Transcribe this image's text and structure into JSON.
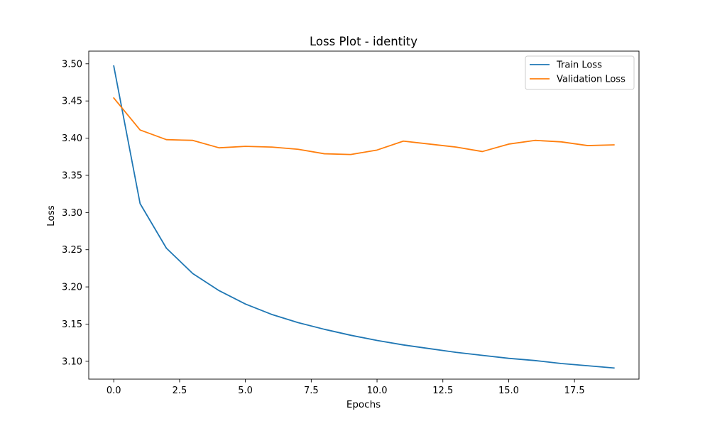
{
  "chart_data": {
    "type": "line",
    "title": "Loss Plot - identity",
    "xlabel": "Epochs",
    "ylabel": "Loss",
    "xlim": [
      -0.95,
      19.95
    ],
    "ylim": [
      3.076,
      3.517
    ],
    "xticks": [
      0.0,
      2.5,
      5.0,
      7.5,
      10.0,
      12.5,
      15.0,
      17.5
    ],
    "xtick_labels": [
      "0.0",
      "2.5",
      "5.0",
      "7.5",
      "10.0",
      "12.5",
      "15.0",
      "17.5"
    ],
    "yticks": [
      3.1,
      3.15,
      3.2,
      3.25,
      3.3,
      3.35,
      3.4,
      3.45,
      3.5
    ],
    "ytick_labels": [
      "3.10",
      "3.15",
      "3.20",
      "3.25",
      "3.30",
      "3.35",
      "3.40",
      "3.45",
      "3.50"
    ],
    "grid": false,
    "legend_position": "top-right",
    "x": [
      0,
      1,
      2,
      3,
      4,
      5,
      6,
      7,
      8,
      9,
      10,
      11,
      12,
      13,
      14,
      15,
      16,
      17,
      18,
      19
    ],
    "series": [
      {
        "name": "Train Loss",
        "color": "#1f77b4",
        "values": [
          3.497,
          3.312,
          3.252,
          3.218,
          3.195,
          3.177,
          3.163,
          3.152,
          3.143,
          3.135,
          3.128,
          3.122,
          3.117,
          3.112,
          3.108,
          3.104,
          3.101,
          3.097,
          3.094,
          3.091
        ]
      },
      {
        "name": "Validation Loss",
        "color": "#ff7f0e",
        "values": [
          3.454,
          3.411,
          3.398,
          3.397,
          3.387,
          3.389,
          3.388,
          3.385,
          3.379,
          3.378,
          3.384,
          3.396,
          3.392,
          3.388,
          3.382,
          3.392,
          3.397,
          3.395,
          3.39,
          3.391
        ]
      }
    ]
  }
}
